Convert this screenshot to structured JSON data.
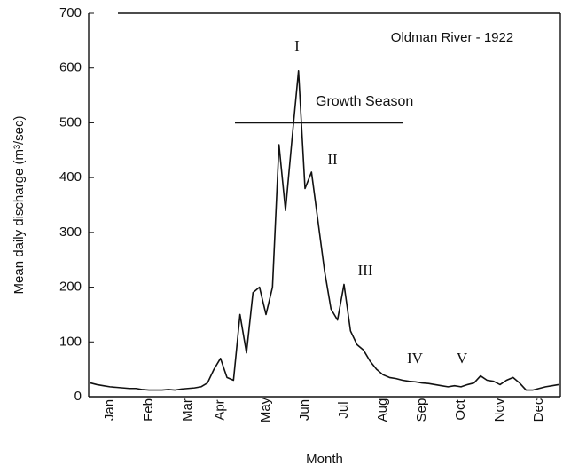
{
  "chart_data": {
    "type": "line",
    "annotation_title": "Oldman River - 1922",
    "y_label": "Mean daily discharge (m³/sec)",
    "x_label": "Month",
    "categories": [
      null,
      null,
      null,
      "Jan",
      null,
      null,
      null,
      null,
      null,
      "Feb",
      null,
      null,
      null,
      null,
      null,
      "Mar",
      null,
      null,
      null,
      null,
      "Apr",
      null,
      null,
      null,
      null,
      null,
      null,
      "May",
      null,
      null,
      null,
      null,
      null,
      "Jun",
      null,
      null,
      null,
      null,
      null,
      "Jul",
      null,
      null,
      null,
      null,
      null,
      "Aug",
      null,
      null,
      null,
      null,
      null,
      "Sep",
      null,
      null,
      null,
      null,
      null,
      "Oct",
      null,
      null,
      null,
      null,
      null,
      "Nov",
      null,
      null,
      null,
      null,
      null,
      "Dec",
      null,
      null,
      null
    ],
    "values": [
      25,
      22,
      20,
      18,
      17,
      16,
      15,
      15,
      13,
      12,
      12,
      12,
      13,
      12,
      14,
      15,
      16,
      18,
      25,
      50,
      70,
      35,
      30,
      150,
      80,
      190,
      200,
      150,
      200,
      460,
      340,
      470,
      595,
      380,
      410,
      320,
      230,
      160,
      140,
      205,
      120,
      95,
      85,
      65,
      50,
      40,
      35,
      33,
      30,
      28,
      27,
      25,
      24,
      22,
      20,
      18,
      20,
      18,
      22,
      25,
      38,
      30,
      28,
      22,
      30,
      35,
      25,
      12,
      12,
      15,
      18,
      20,
      22
    ],
    "color": "#111111",
    "ylim": [
      0,
      700
    ],
    "yticks": [
      0,
      100,
      200,
      300,
      400,
      500,
      600,
      700
    ],
    "grid": false,
    "growth_season": {
      "label": "Growth Season",
      "value": 500
    },
    "phases": [
      "I",
      "II",
      "III",
      "IV",
      "V"
    ]
  }
}
